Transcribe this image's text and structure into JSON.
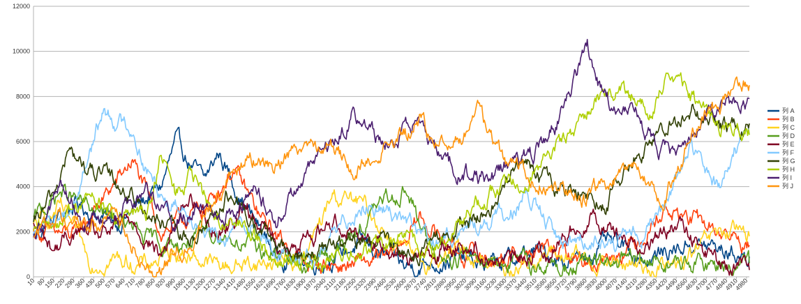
{
  "chart_data": {
    "type": "line",
    "title": "",
    "xlabel": "",
    "ylabel": "",
    "ylim": [
      0,
      12000
    ],
    "y_ticks": [
      "0",
      "2000",
      "4000",
      "6000",
      "8000",
      "10000",
      "12000"
    ],
    "x_ticks": [
      "10",
      "80",
      "150",
      "220",
      "290",
      "360",
      "430",
      "500",
      "570",
      "640",
      "710",
      "780",
      "850",
      "920",
      "990",
      "1060",
      "1130",
      "1200",
      "1270",
      "1340",
      "1410",
      "1480",
      "1550",
      "1620",
      "1690",
      "1760",
      "1830",
      "1900",
      "1970",
      "2040",
      "2110",
      "2180",
      "2250",
      "2320",
      "2390",
      "2460",
      "2530",
      "2600",
      "2670",
      "2740",
      "2810",
      "2880",
      "2950",
      "3020",
      "3090",
      "3160",
      "3230",
      "3300",
      "3370",
      "3440",
      "3510",
      "3580",
      "3650",
      "3720",
      "3790",
      "3860",
      "3930",
      "4000",
      "4070",
      "4140",
      "4210",
      "4280",
      "4350",
      "4420",
      "4490",
      "4560",
      "4630",
      "4700",
      "4770",
      "4840",
      "4910",
      "4980"
    ],
    "x_range": [
      10,
      5000
    ],
    "gridlines": "horizontal",
    "legend_position": "right",
    "series": [
      {
        "name": "列 A",
        "color": "#004586",
        "x": [
          10,
          300,
          600,
          900,
          1000,
          1200,
          1300,
          1500,
          1700,
          2000,
          2300,
          2600,
          2900,
          3200,
          3500,
          3800,
          4000,
          4300,
          4600,
          5000
        ],
        "values": [
          1800,
          3200,
          2400,
          4000,
          5900,
          4200,
          5500,
          3000,
          1000,
          600,
          1500,
          400,
          800,
          500,
          1100,
          700,
          1500,
          800,
          1500,
          900
        ]
      },
      {
        "name": "列 B",
        "color": "#ff420e",
        "x": [
          10,
          300,
          600,
          700,
          900,
          1200,
          1400,
          1600,
          1900,
          2200,
          2500,
          2700,
          3000,
          3300,
          3600,
          3900,
          4200,
          4400,
          4600,
          5000
        ],
        "values": [
          2000,
          1800,
          4300,
          5200,
          2000,
          3000,
          4800,
          2500,
          600,
          500,
          800,
          2600,
          1000,
          800,
          1200,
          600,
          1500,
          3000,
          2500,
          1400
        ]
      },
      {
        "name": "列 C",
        "color": "#ffd320",
        "x": [
          10,
          200,
          400,
          600,
          800,
          1000,
          1300,
          1600,
          1900,
          2100,
          2300,
          2500,
          2700,
          3000,
          3300,
          3600,
          3900,
          4200,
          4500,
          4800,
          5000
        ],
        "values": [
          2200,
          3000,
          700,
          800,
          500,
          1200,
          500,
          600,
          800,
          3600,
          3200,
          1800,
          500,
          1200,
          400,
          1000,
          700,
          500,
          400,
          2000,
          1800
        ]
      },
      {
        "name": "列 D",
        "color": "#579d1c",
        "x": [
          10,
          200,
          400,
          600,
          800,
          1000,
          1300,
          1600,
          1900,
          2200,
          2400,
          2600,
          2800,
          3100,
          3400,
          3700,
          4000,
          4300,
          4600,
          5000
        ],
        "values": [
          2500,
          3800,
          3000,
          2500,
          1600,
          1400,
          2000,
          1200,
          500,
          1500,
          3000,
          4000,
          800,
          1000,
          600,
          400,
          600,
          700,
          500,
          600
        ]
      },
      {
        "name": "列 E",
        "color": "#7e0021",
        "x": [
          10,
          150,
          300,
          500,
          700,
          900,
          1100,
          1300,
          1500,
          1800,
          2100,
          2400,
          2700,
          3000,
          3300,
          3600,
          3900,
          4200,
          4500,
          4800,
          5000
        ],
        "values": [
          2200,
          1200,
          2000,
          1800,
          2600,
          900,
          3600,
          2000,
          3000,
          1000,
          2500,
          1600,
          800,
          1500,
          600,
          1200,
          2800,
          1400,
          2200,
          500,
          300
        ]
      },
      {
        "name": "列 F",
        "color": "#83caff",
        "x": [
          10,
          150,
          300,
          400,
          500,
          600,
          700,
          800,
          950,
          1100,
          1300,
          1500,
          1700,
          2000,
          2300,
          2550,
          2800,
          3000,
          3200,
          3450,
          3700,
          3900,
          4100,
          4350,
          4600,
          4800,
          4900,
          5000
        ],
        "values": [
          1800,
          2500,
          3300,
          5600,
          7400,
          6900,
          6600,
          4700,
          3400,
          3000,
          1400,
          2500,
          1000,
          1000,
          3300,
          2800,
          1400,
          2200,
          2400,
          3500,
          1500,
          1800,
          1400,
          2500,
          5700,
          3800,
          5700,
          6300
        ]
      },
      {
        "name": "列 G",
        "color": "#314004",
        "x": [
          10,
          150,
          250,
          400,
          550,
          700,
          900,
          1100,
          1350,
          1600,
          1800,
          2100,
          2400,
          2700,
          3000,
          3200,
          3400,
          3600,
          3800,
          4000,
          4200,
          4400,
          4600,
          4800,
          5000
        ],
        "values": [
          2200,
          3600,
          5500,
          4700,
          4300,
          3600,
          2300,
          1500,
          3600,
          2000,
          900,
          1300,
          1600,
          1100,
          2300,
          3000,
          5200,
          4000,
          3800,
          3300,
          5500,
          6400,
          7400,
          6500,
          6800
        ]
      },
      {
        "name": "列 H",
        "color": "#aecf00",
        "x": [
          10,
          200,
          400,
          600,
          800,
          900,
          1000,
          1100,
          1300,
          1500,
          1700,
          2000,
          2300,
          2600,
          2800,
          3000,
          3200,
          3400,
          3600,
          3800,
          3900,
          4100,
          4300,
          4450,
          4600,
          4800,
          5000
        ],
        "values": [
          1800,
          2600,
          3600,
          2500,
          2800,
          5400,
          3600,
          4500,
          2500,
          2100,
          900,
          600,
          1000,
          1800,
          1000,
          2600,
          3800,
          4200,
          5500,
          6400,
          7900,
          8400,
          7500,
          9000,
          7900,
          6600,
          6300
        ]
      },
      {
        "name": "列 I",
        "color": "#4b1f6f",
        "x": [
          10,
          200,
          400,
          600,
          800,
          1000,
          1200,
          1400,
          1550,
          1700,
          1900,
          2100,
          2250,
          2400,
          2550,
          2700,
          2850,
          3000,
          3200,
          3350,
          3500,
          3650,
          3800,
          3870,
          3950,
          4050,
          4200,
          4350,
          4500,
          4650,
          4800,
          5000
        ],
        "values": [
          2000,
          4000,
          2300,
          2800,
          4100,
          2400,
          3300,
          2900,
          3800,
          2500,
          4500,
          6000,
          7300,
          6200,
          6100,
          7000,
          5200,
          4600,
          4300,
          5000,
          5500,
          6800,
          8900,
          10300,
          8700,
          7600,
          7400,
          5800,
          5300,
          6700,
          7600,
          7900
        ]
      },
      {
        "name": "列 J",
        "color": "#ff950e",
        "x": [
          10,
          200,
          400,
          600,
          800,
          900,
          1100,
          1300,
          1500,
          1700,
          1900,
          2100,
          2250,
          2400,
          2600,
          2700,
          2800,
          3000,
          3100,
          3200,
          3300,
          3500,
          3700,
          3850,
          4000,
          4200,
          4400,
          4550,
          4700,
          4800,
          4900,
          5000
        ],
        "values": [
          2000,
          2700,
          2200,
          2800,
          500,
          400,
          1600,
          3800,
          5200,
          5000,
          6100,
          5900,
          4500,
          5600,
          6200,
          7000,
          5800,
          6200,
          7500,
          6200,
          5000,
          4500,
          3800,
          3600,
          4000,
          4700,
          3400,
          5600,
          7000,
          7400,
          8700,
          8500
        ]
      }
    ]
  }
}
